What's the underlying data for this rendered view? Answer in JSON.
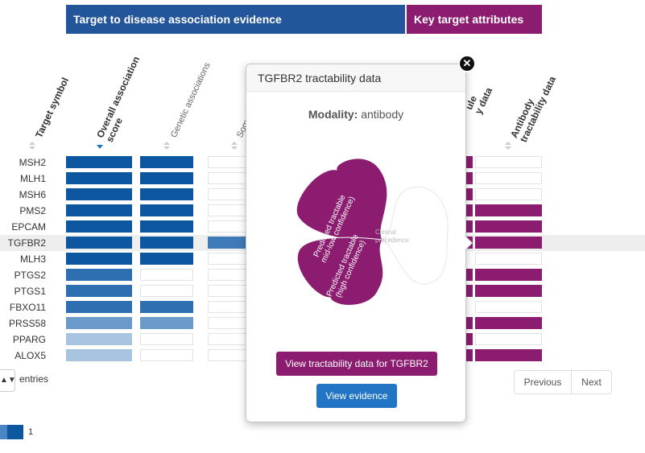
{
  "headers": {
    "association_evidence": "Target to disease association evidence",
    "key_attributes": "Key target attributes"
  },
  "columns": {
    "target_symbol": "Target symbol",
    "overall_line1": "Overall association",
    "overall_line2": "score",
    "genetic": "Genetic associations",
    "somatic_partial": "Soma",
    "small_molecule_partial1": "ule",
    "small_molecule_partial2": "y data",
    "antibody_line1": "Antibody",
    "antibody_line2": "tractability data"
  },
  "colors": {
    "blue_strong": "#0d56a0",
    "blue_mid": "#2d6fb1",
    "blue_light": "#6b99c9",
    "blue_pale": "#a7c4e0",
    "purple": "#8b1c6f"
  },
  "rows": [
    {
      "symbol": "MSH2",
      "overall": 1.0,
      "genetic": 1.0,
      "somatic": 0,
      "small": true,
      "antibody": false
    },
    {
      "symbol": "MLH1",
      "overall": 1.0,
      "genetic": 1.0,
      "somatic": 0,
      "small": true,
      "antibody": false
    },
    {
      "symbol": "MSH6",
      "overall": 1.0,
      "genetic": 1.0,
      "somatic": 0,
      "small": true,
      "antibody": false
    },
    {
      "symbol": "PMS2",
      "overall": 1.0,
      "genetic": 1.0,
      "somatic": 0,
      "small": true,
      "antibody": true
    },
    {
      "symbol": "EPCAM",
      "overall": 1.0,
      "genetic": 1.0,
      "somatic": 0,
      "small": true,
      "antibody": true
    },
    {
      "symbol": "TGFBR2",
      "overall": 1.0,
      "genetic": 1.0,
      "somatic": 0.75,
      "small": true,
      "antibody": true
    },
    {
      "symbol": "MLH3",
      "overall": 1.0,
      "genetic": 1.0,
      "somatic": 0,
      "small": false,
      "antibody": false
    },
    {
      "symbol": "PTGS2",
      "overall": 0.9,
      "genetic": 0,
      "somatic": 0,
      "small": true,
      "antibody": true
    },
    {
      "symbol": "PTGS1",
      "overall": 0.9,
      "genetic": 0,
      "somatic": 0,
      "small": true,
      "antibody": true
    },
    {
      "symbol": "FBXO11",
      "overall": 0.8,
      "genetic": 0.8,
      "somatic": 0,
      "small": false,
      "antibody": false
    },
    {
      "symbol": "PRSS58",
      "overall": 0.55,
      "genetic": 0.55,
      "somatic": 0,
      "small": true,
      "antibody": true
    },
    {
      "symbol": "PPARG",
      "overall": 0.35,
      "genetic": 0,
      "somatic": 0,
      "small": true,
      "antibody": false
    },
    {
      "symbol": "ALOX5",
      "overall": 0.35,
      "genetic": 0,
      "somatic": 0,
      "small": true,
      "antibody": true
    }
  ],
  "table_footer": {
    "entries_label": "entries",
    "select_glyph": "▲▼",
    "previous": "Previous",
    "next": "Next",
    "legend_value": "1"
  },
  "popover": {
    "title": "TGFBR2 tractability data",
    "modality_label": "Modality:",
    "modality_value": "antibody",
    "petal_top_line1": "Predicted tractable",
    "petal_top_line2": "mid-low confidence)",
    "petal_bottom_line1": "Predicted tractable",
    "petal_bottom_line2": "(high confidence)",
    "petal_right_line1": "Clinical",
    "petal_right_line2": "precedence",
    "view_data_button": "View tractability data for TGFBR2",
    "view_evidence_button": "View evidence",
    "close_glyph": "✕"
  }
}
